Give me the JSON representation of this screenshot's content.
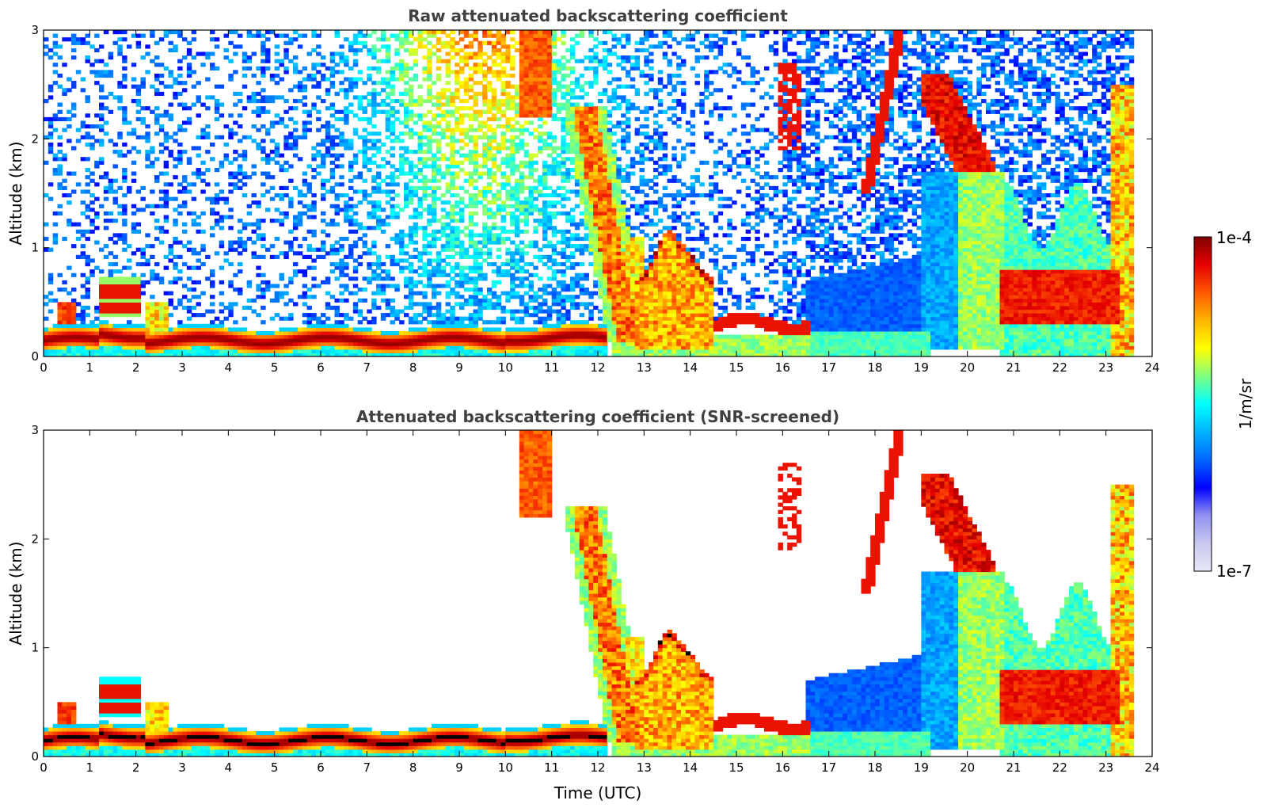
{
  "colors": {
    "jet": [
      "#e8e8f8",
      "#c8c8f0",
      "#9090f0",
      "#0000ff",
      "#0066ff",
      "#00b4ff",
      "#00ffff",
      "#7fff80",
      "#ffff00",
      "#ffb400",
      "#ff5a00",
      "#e60000",
      "#800000"
    ],
    "frame": "#000000"
  },
  "chart_data": [
    {
      "type": "heatmap",
      "title": "Raw attenuated backscattering coefficient",
      "xlabel": "",
      "ylabel": "Altitude (km)",
      "xlim": [
        0,
        24
      ],
      "ylim": [
        0,
        3
      ],
      "xticks": [
        "0",
        "1",
        "2",
        "3",
        "4",
        "5",
        "6",
        "7",
        "8",
        "9",
        "10",
        "11",
        "12",
        "13",
        "14",
        "15",
        "16",
        "17",
        "18",
        "19",
        "20",
        "21",
        "22",
        "23",
        "24"
      ],
      "yticks": [
        "0",
        "1",
        "2",
        "3"
      ],
      "features": [
        {
          "name": "boundary-layer-aerosol",
          "x": [
            0,
            12
          ],
          "y": [
            0.05,
            0.25
          ],
          "level": 0.95
        },
        {
          "name": "early-cloud",
          "x": [
            1.2,
            2.1
          ],
          "y": [
            0.35,
            0.7
          ],
          "level": 0.9
        },
        {
          "name": "noise-sky",
          "x": [
            0,
            24
          ],
          "y": [
            0.3,
            3
          ],
          "level": 0.4
        },
        {
          "name": "falling-cloud",
          "x": [
            11.7,
            12.8
          ],
          "y": [
            0.2,
            2.2
          ],
          "level": 0.8
        },
        {
          "name": "cloud-13-14",
          "x": [
            12.8,
            14.5
          ],
          "y": [
            0.1,
            1.2
          ],
          "level": 0.85
        },
        {
          "name": "evening-aerosol",
          "x": [
            16.5,
            19
          ],
          "y": [
            0.1,
            0.8
          ],
          "level": 0.3
        },
        {
          "name": "high-cloud-19-20",
          "x": [
            18.7,
            20.7
          ],
          "y": [
            1.7,
            2.6
          ],
          "level": 0.95
        },
        {
          "name": "cloud-21-23",
          "x": [
            20.7,
            23.3
          ],
          "y": [
            0.3,
            0.8
          ],
          "level": 0.85
        }
      ]
    },
    {
      "type": "heatmap",
      "title": "Attenuated backscattering coefficient (SNR-screened)",
      "xlabel": "Time (UTC)",
      "ylabel": "Altitude (km)",
      "xlim": [
        0,
        24
      ],
      "ylim": [
        0,
        3
      ],
      "xticks": [
        "0",
        "1",
        "2",
        "3",
        "4",
        "5",
        "6",
        "7",
        "8",
        "9",
        "10",
        "11",
        "12",
        "13",
        "14",
        "15",
        "16",
        "17",
        "18",
        "19",
        "20",
        "21",
        "22",
        "23",
        "24"
      ],
      "yticks": [
        "0",
        "1",
        "2",
        "3"
      ],
      "features": [
        {
          "name": "boundary-layer-aerosol",
          "x": [
            0,
            12
          ],
          "y": [
            0.05,
            0.25
          ],
          "level": 0.95
        },
        {
          "name": "early-cloud",
          "x": [
            1.2,
            2.1
          ],
          "y": [
            0.35,
            0.7
          ],
          "level": 0.9
        },
        {
          "name": "falling-cloud",
          "x": [
            11.7,
            12.8
          ],
          "y": [
            0.2,
            2.2
          ],
          "level": 0.75
        },
        {
          "name": "cloud-13-14",
          "x": [
            12.8,
            14.5
          ],
          "y": [
            0.1,
            1.2
          ],
          "level": 0.85
        },
        {
          "name": "evening-aerosol",
          "x": [
            16.5,
            19
          ],
          "y": [
            0.1,
            0.95
          ],
          "level": 0.28
        },
        {
          "name": "high-cloud-19-20",
          "x": [
            18.7,
            20.7
          ],
          "y": [
            1.7,
            2.6
          ],
          "level": 0.95
        },
        {
          "name": "cloud-21-23",
          "x": [
            20.7,
            23.3
          ],
          "y": [
            0.3,
            0.8
          ],
          "level": 0.85
        }
      ]
    }
  ],
  "colorbar": {
    "label": "1/m/sr",
    "max_label": "1e-4",
    "min_label": "1e-7",
    "range": [
      1e-07,
      0.0001
    ],
    "scale": "log"
  }
}
